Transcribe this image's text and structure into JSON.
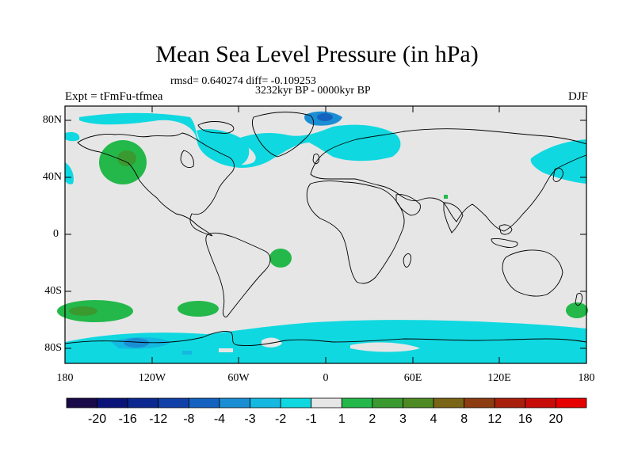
{
  "title": "Mean Sea Level Pressure (in hPa)",
  "stats": "rmsd= 0.640274 diff= -0.109253",
  "period": "3232kyr BP - 0000kyr BP",
  "experiment": "Expt = tFmFu-tfmea",
  "season": "DJF",
  "lat_ticks": [
    "80N",
    "40N",
    "0",
    "40S",
    "80S"
  ],
  "lon_ticks": [
    "180",
    "120W",
    "60W",
    "0",
    "60E",
    "120E",
    "180"
  ],
  "colorbar": {
    "labels": [
      "-20",
      "-16",
      "-12",
      "-8",
      "-4",
      "-3",
      "-2",
      "-1",
      "1",
      "2",
      "3",
      "4",
      "8",
      "12",
      "16",
      "20"
    ],
    "colors": [
      "#1a0a4a",
      "#0a1478",
      "#0c2890",
      "#1040a8",
      "#1462c0",
      "#1a8ed4",
      "#14b8e0",
      "#10d8e0",
      "#e6e6e6",
      "#24b84a",
      "#3a9a30",
      "#4e8a24",
      "#7a6416",
      "#8c3c10",
      "#a8200c",
      "#c80c08",
      "#e60000"
    ]
  },
  "colors": {
    "background": "#e6e6e6",
    "light_cyan": "#10d8e0",
    "mid_blue": "#14b8e0",
    "deep_blue": "#1a8ed4",
    "green": "#24b84a",
    "dark_green": "#3a9a30",
    "coast": "#000000"
  }
}
